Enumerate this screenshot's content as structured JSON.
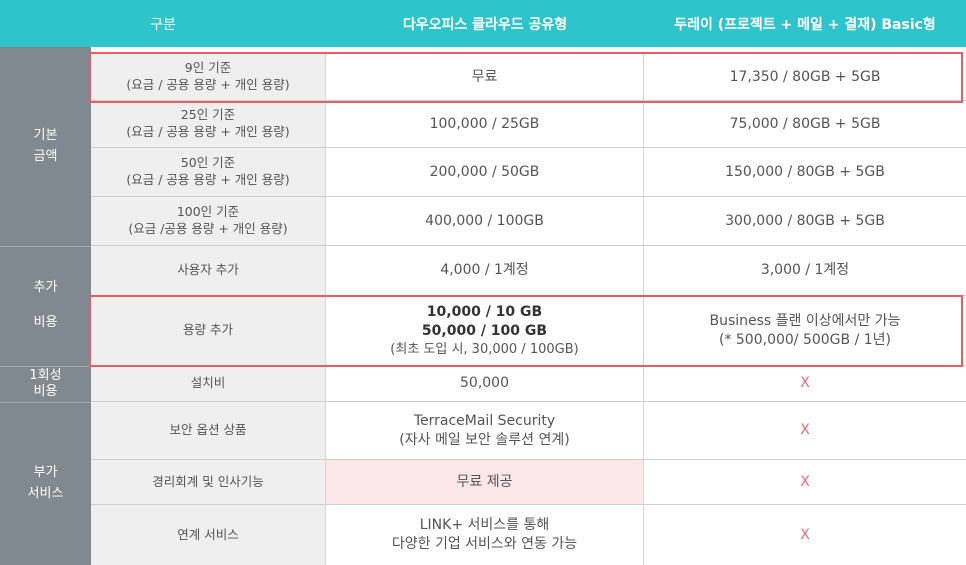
{
  "header": {
    "col0": "구분",
    "col1": "다우오피스 클라우드 공유형",
    "col2": "두레이 (프로젝트 + 메일 + 결재) Basic형"
  },
  "categories": {
    "basic": [
      "기본",
      "금액"
    ],
    "extra": [
      "추가",
      "비용"
    ],
    "onetime": [
      "1회성",
      "비용"
    ],
    "addon": [
      "부가",
      "서비스"
    ]
  },
  "rows": {
    "r9": {
      "label": [
        "9인 기준",
        "(요금 / 공용 용량 + 개인 용량)"
      ],
      "daou": [
        "무료"
      ],
      "dooray": [
        "17,350 / 80GB + 5GB"
      ]
    },
    "r25": {
      "label": [
        "25인 기준",
        "(요금 / 공용 용량 + 개인 용량)"
      ],
      "daou": [
        "100,000 / 25GB"
      ],
      "dooray": [
        "75,000 / 80GB + 5GB"
      ]
    },
    "r50": {
      "label": [
        "50인 기준",
        "(요금 / 공용 용량 + 개인 용량)"
      ],
      "daou": [
        "200,000 / 50GB"
      ],
      "dooray": [
        "150,000 / 80GB + 5GB"
      ]
    },
    "r100": {
      "label": [
        "100인 기준",
        "(요금 /공용 용량 + 개인 용량)"
      ],
      "daou": [
        "400,000 / 100GB"
      ],
      "dooray": [
        "300,000 / 80GB + 5GB"
      ]
    },
    "user_add": {
      "label": [
        "사용자 추가"
      ],
      "daou": [
        "4,000 / 1계정"
      ],
      "dooray": [
        "3,000 / 1계정"
      ]
    },
    "storage_add": {
      "label": [
        "용량 추가"
      ],
      "daou": [
        "10,000 / 10 GB",
        "50,000 / 100 GB",
        "(최초 도입 시, 30,000 / 100GB)"
      ],
      "dooray": [
        "Business 플랜 이상에서만 가능",
        "(* 500,000/ 500GB / 1년)"
      ]
    },
    "install": {
      "label": [
        "설치비"
      ],
      "daou": [
        "50,000"
      ],
      "dooray": [
        "X"
      ]
    },
    "security": {
      "label": [
        "보안 옵션 상품"
      ],
      "daou": [
        "TerraceMail Security",
        "(자사 메일 보안 솔루션 연계)"
      ],
      "dooray": [
        "X"
      ]
    },
    "accounting": {
      "label": [
        "경리회계 및 인사기능"
      ],
      "daou": [
        "무료 제공"
      ],
      "dooray": [
        "X"
      ]
    },
    "link": {
      "label": [
        "연계 서비스"
      ],
      "daou": [
        "LINK+ 서비스를 통해",
        "다양한 기업 서비스와 연동 가능"
      ],
      "dooray": [
        "X"
      ]
    }
  },
  "colors": {
    "header_bg": "#2ec4cc",
    "category_bg": "#808890",
    "label_bg": "#efefef",
    "highlight_border": "#e85d63",
    "pink_cell": "#fbe7ea",
    "x_mark": "#e86a74"
  }
}
